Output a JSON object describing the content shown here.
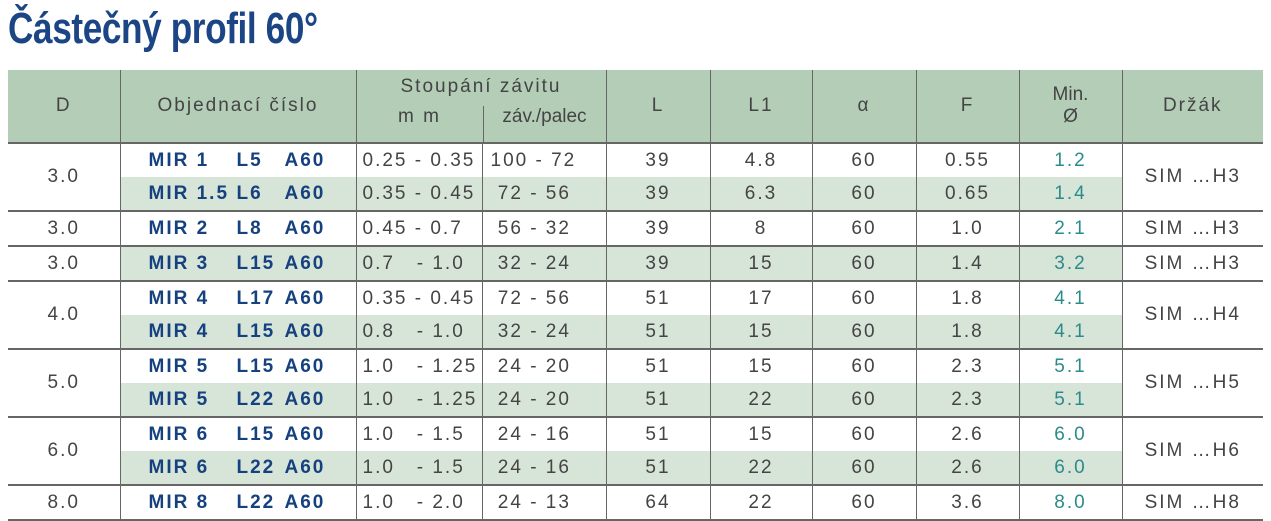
{
  "title": "Částečný profil 60°",
  "headers": {
    "d": "D",
    "order": "Objednací číslo",
    "pitch": "Stoupání závitu",
    "mm": "m m",
    "tpi": "záv./palec",
    "l": "L",
    "l1": "L1",
    "alpha": "α",
    "f": "F",
    "min": "Min.",
    "min2": "Ø",
    "holder": "Držák"
  },
  "groups": [
    {
      "d": "3.0",
      "holder": "SIM …H3",
      "rows": [
        {
          "code": [
            "MIR 1",
            "L5",
            "A60"
          ],
          "mm": "0.25 - 0.35",
          "tpi": "100 - 72",
          "l": "39",
          "l1": "4.8",
          "alpha": "60",
          "f": "0.55",
          "min": "1.2"
        },
        {
          "code": [
            "MIR 1.5",
            "L6",
            "A60"
          ],
          "mm": "0.35 - 0.45",
          "tpi": " 72 - 56",
          "l": "39",
          "l1": "6.3",
          "alpha": "60",
          "f": "0.65",
          "min": "1.4"
        }
      ]
    },
    {
      "d": "3.0",
      "holder": "SIM …H3",
      "rows": [
        {
          "code": [
            "MIR 2",
            "L8",
            "A60"
          ],
          "mm": "0.45 - 0.7",
          "tpi": " 56 - 32",
          "l": "39",
          "l1": "8",
          "alpha": "60",
          "f": "1.0",
          "min": "2.1"
        }
      ]
    },
    {
      "d": "3.0",
      "holder": "SIM …H3",
      "shade_single": true,
      "rows": [
        {
          "code": [
            "MIR 3",
            "L15",
            "A60"
          ],
          "mm": "0.7   - 1.0",
          "tpi": " 32 - 24",
          "l": "39",
          "l1": "15",
          "alpha": "60",
          "f": "1.4",
          "min": "3.2"
        }
      ]
    },
    {
      "d": "4.0",
      "holder": "SIM …H4",
      "rows": [
        {
          "code": [
            "MIR 4",
            "L17",
            "A60"
          ],
          "mm": "0.35 - 0.45",
          "tpi": " 72 - 56",
          "l": "51",
          "l1": "17",
          "alpha": "60",
          "f": "1.8",
          "min": "4.1"
        },
        {
          "code": [
            "MIR 4",
            "L15",
            "A60"
          ],
          "mm": "0.8   - 1.0",
          "tpi": " 32 - 24",
          "l": "51",
          "l1": "15",
          "alpha": "60",
          "f": "1.8",
          "min": "4.1"
        }
      ]
    },
    {
      "d": "5.0",
      "holder": "SIM …H5",
      "rows": [
        {
          "code": [
            "MIR 5",
            "L15",
            "A60"
          ],
          "mm": "1.0   - 1.25",
          "tpi": " 24 - 20",
          "l": "51",
          "l1": "15",
          "alpha": "60",
          "f": "2.3",
          "min": "5.1"
        },
        {
          "code": [
            "MIR 5",
            "L22",
            "A60"
          ],
          "mm": "1.0   - 1.25",
          "tpi": " 24 - 20",
          "l": "51",
          "l1": "22",
          "alpha": "60",
          "f": "2.3",
          "min": "5.1"
        }
      ]
    },
    {
      "d": "6.0",
      "holder": "SIM …H6",
      "rows": [
        {
          "code": [
            "MIR 6",
            "L15",
            "A60"
          ],
          "mm": "1.0   - 1.5",
          "tpi": " 24 - 16",
          "l": "51",
          "l1": "15",
          "alpha": "60",
          "f": "2.6",
          "min": "6.0"
        },
        {
          "code": [
            "MIR 6",
            "L22",
            "A60"
          ],
          "mm": "1.0   - 1.5",
          "tpi": " 24 - 16",
          "l": "51",
          "l1": "22",
          "alpha": "60",
          "f": "2.6",
          "min": "6.0"
        }
      ]
    },
    {
      "d": "8.0",
      "holder": "SIM …H8",
      "rows": [
        {
          "code": [
            "MIR 8",
            "L22",
            "A60"
          ],
          "mm": "1.0   - 2.0",
          "tpi": " 24 - 13",
          "l": "64",
          "l1": "22",
          "alpha": "60",
          "f": "3.6",
          "min": "8.0"
        }
      ]
    }
  ],
  "colors": {
    "title": "#1b4585",
    "header_bg": "#b4cdb7",
    "row_shade": "#d7e5d9",
    "code": "#16417f",
    "min_diameter": "#2b8b8a"
  }
}
